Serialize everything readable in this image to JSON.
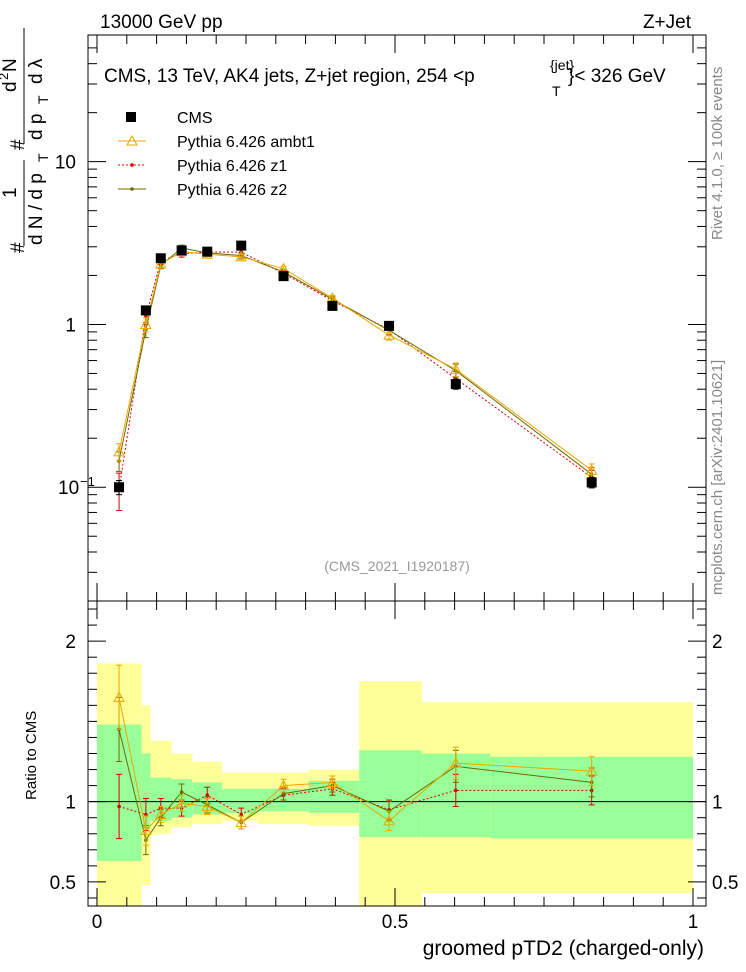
{
  "header": {
    "left": "13000 GeV pp",
    "right": "Z+Jet"
  },
  "side_labels": {
    "rivet": "Rivet 4.1.0, ≥ 100k events",
    "mcplots": "mcplots.cern.ch [arXiv:2401.10621]"
  },
  "watermark": "(CMS_2021_I1920187)",
  "title": {
    "main": "CMS, 13 TeV, AK4 jets, Z+jet region, 254 <p",
    "sup": "{jet}",
    "sub": "T",
    "tail": "}< 326 GeV"
  },
  "ylabel_main": {
    "hash1": "#",
    "one": "1",
    "denom1": "d N / d p",
    "denom1_sub": "T",
    "hash2": "#",
    "d2n": "d",
    "d2n_sup": "2",
    "d2n_n": "N",
    "denom2": "d p",
    "denom2_sub": "T",
    "denom2_tail": "d λ"
  },
  "chart_data": [
    {
      "type": "line",
      "panel": "main",
      "xlabel": "groomed pTD2 (charged-only)",
      "ylabel": "1/N dN/dpT d2N/dpT dlambda",
      "xlim": [
        0,
        1
      ],
      "ylim": [
        0.02,
        60
      ],
      "yscale": "log",
      "yticks_major": [
        0.1,
        1,
        10
      ],
      "ytick_labels": [
        "10",
        "1",
        "10"
      ],
      "ytick_label_exponents": [
        "−1",
        "",
        ""
      ],
      "legend_position": "top-left",
      "series": [
        {
          "name": "CMS",
          "style": "marker-square",
          "color": "#000000",
          "x": [
            0.037,
            0.082,
            0.107,
            0.142,
            0.185,
            0.242,
            0.313,
            0.395,
            0.49,
            0.602,
            0.83
          ],
          "y": [
            0.1,
            1.22,
            2.55,
            2.85,
            2.8,
            3.05,
            1.98,
            1.3,
            0.98,
            0.43,
            0.107
          ],
          "err": [
            0.01,
            0.06,
            0.08,
            0.12,
            0.1,
            0.12,
            0.08,
            0.06,
            0.05,
            0.03,
            0.008
          ]
        },
        {
          "name": "Pythia 6.426 ambt1",
          "style": "line-open-triangle",
          "color": "#e8a800",
          "x": [
            0.037,
            0.082,
            0.107,
            0.142,
            0.185,
            0.242,
            0.313,
            0.395,
            0.49,
            0.602,
            0.83
          ],
          "y": [
            0.165,
            1.0,
            2.35,
            2.8,
            2.7,
            2.6,
            2.2,
            1.45,
            0.86,
            0.53,
            0.127
          ],
          "err": [
            0.02,
            0.1,
            0.1,
            0.12,
            0.1,
            0.1,
            0.08,
            0.06,
            0.06,
            0.05,
            0.012
          ]
        },
        {
          "name": "Pythia 6.426 z1",
          "style": "dotted-dot",
          "color": "#dd0000",
          "x": [
            0.037,
            0.082,
            0.107,
            0.142,
            0.185,
            0.242,
            0.313,
            0.395,
            0.49,
            0.602,
            0.83
          ],
          "y": [
            0.097,
            1.12,
            2.45,
            2.72,
            2.78,
            2.78,
            2.06,
            1.4,
            0.93,
            0.465,
            0.115
          ],
          "err": [
            0.025,
            0.12,
            0.12,
            0.13,
            0.12,
            0.12,
            0.08,
            0.06,
            0.06,
            0.05,
            0.012
          ]
        },
        {
          "name": "Pythia 6.426 z2",
          "style": "line-dot",
          "color": "#6b6b00",
          "x": [
            0.037,
            0.082,
            0.107,
            0.142,
            0.185,
            0.242,
            0.313,
            0.395,
            0.49,
            0.602,
            0.83
          ],
          "y": [
            0.145,
            0.93,
            2.3,
            2.95,
            2.75,
            2.65,
            2.1,
            1.43,
            0.92,
            0.52,
            0.12
          ],
          "err": [
            0.02,
            0.1,
            0.1,
            0.12,
            0.1,
            0.1,
            0.08,
            0.06,
            0.06,
            0.05,
            0.012
          ]
        }
      ]
    },
    {
      "type": "line",
      "panel": "ratio",
      "ylabel": "Ratio to CMS",
      "xlabel": "groomed pTD2 (charged-only)",
      "xlim": [
        0,
        1
      ],
      "ylim": [
        0.35,
        2.25
      ],
      "yticks_labeled": [
        0.5,
        1,
        2
      ],
      "ytick_labels": [
        "0.5",
        "1",
        "2"
      ],
      "xticks_labeled": [
        0,
        0.5,
        1
      ],
      "xtick_labels": [
        "0",
        "0.5",
        "1"
      ],
      "reference_line": 1,
      "bands": {
        "bin_edges": [
          0,
          0.075,
          0.09,
          0.125,
          0.16,
          0.21,
          0.27,
          0.355,
          0.44,
          0.545,
          0.66,
          1.0
        ],
        "inner": [
          [
            0.63,
            1.48
          ],
          [
            0.83,
            1.3
          ],
          [
            0.88,
            1.15
          ],
          [
            0.9,
            1.14
          ],
          [
            0.92,
            1.12
          ],
          [
            0.93,
            1.08
          ],
          [
            0.94,
            1.08
          ],
          [
            0.93,
            1.13
          ],
          [
            0.78,
            1.32
          ],
          [
            0.78,
            1.3
          ],
          [
            0.77,
            1.28
          ]
        ],
        "outer": [
          [
            0.35,
            1.86
          ],
          [
            0.48,
            1.6
          ],
          [
            0.8,
            1.38
          ],
          [
            0.84,
            1.3
          ],
          [
            0.86,
            1.25
          ],
          [
            0.88,
            1.18
          ],
          [
            0.86,
            1.18
          ],
          [
            0.85,
            1.2
          ],
          [
            0.35,
            1.75
          ],
          [
            0.43,
            1.62
          ],
          [
            0.43,
            1.62
          ]
        ],
        "inner_color": "#99ff99",
        "outer_color": "#ffff99"
      },
      "series": [
        {
          "name": "Pythia 6.426 ambt1",
          "color": "#e8a800",
          "x": [
            0.037,
            0.082,
            0.107,
            0.142,
            0.185,
            0.242,
            0.313,
            0.395,
            0.49,
            0.602,
            0.83
          ],
          "y": [
            1.65,
            0.82,
            0.92,
            0.99,
            0.97,
            0.87,
            1.1,
            1.12,
            0.88,
            1.24,
            1.19
          ],
          "err": [
            0.2,
            0.09,
            0.05,
            0.05,
            0.05,
            0.04,
            0.04,
            0.04,
            0.06,
            0.1,
            0.09
          ]
        },
        {
          "name": "Pythia 6.426 z1",
          "color": "#dd0000",
          "x": [
            0.037,
            0.082,
            0.107,
            0.142,
            0.185,
            0.242,
            0.313,
            0.395,
            0.49,
            0.602,
            0.83
          ],
          "y": [
            0.97,
            0.92,
            0.96,
            0.96,
            1.04,
            0.92,
            1.04,
            1.08,
            0.95,
            1.07,
            1.07
          ],
          "err": [
            0.2,
            0.1,
            0.06,
            0.05,
            0.05,
            0.04,
            0.04,
            0.04,
            0.06,
            0.1,
            0.09
          ]
        },
        {
          "name": "Pythia 6.426 z2",
          "color": "#6b6b00",
          "x": [
            0.037,
            0.082,
            0.107,
            0.142,
            0.185,
            0.242,
            0.313,
            0.395,
            0.49,
            0.602,
            0.83
          ],
          "y": [
            1.45,
            0.76,
            0.9,
            1.06,
            0.98,
            0.87,
            1.05,
            1.1,
            0.94,
            1.22,
            1.12
          ],
          "err": [
            0.2,
            0.09,
            0.05,
            0.05,
            0.05,
            0.04,
            0.04,
            0.04,
            0.06,
            0.1,
            0.09
          ]
        }
      ]
    }
  ]
}
